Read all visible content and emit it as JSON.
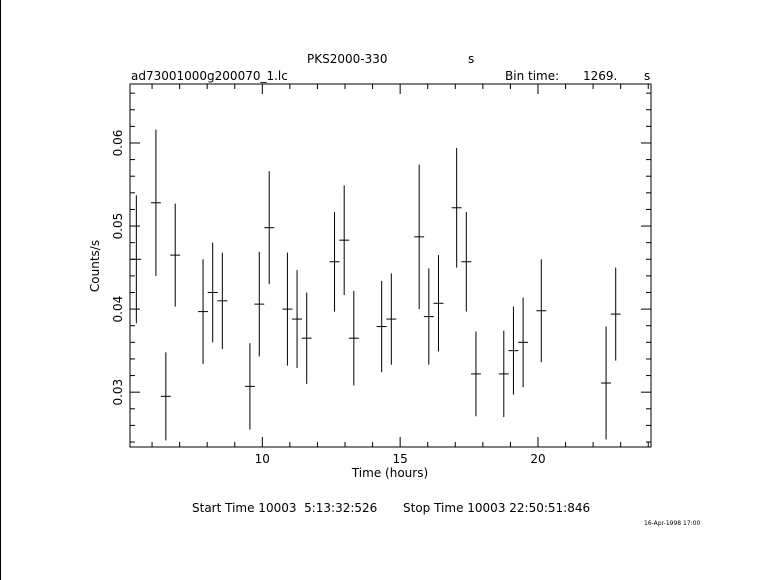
{
  "header": {
    "target": "PKS2000-330",
    "target_unit": "s",
    "filename": "ad73001000g200070_1.lc",
    "bin_time_label": "Bin time:",
    "bin_time_value": "1269.",
    "bin_time_unit": "s"
  },
  "footer": {
    "start_label": "Start Time 10003  5:13:32:526",
    "stop_label": "Stop Time 10003 22:50:51:846",
    "date_stamp": "16-Apr-1998 17:00"
  },
  "chart_data": {
    "type": "scatter",
    "title": "PKS2000-330",
    "xlabel": "Time (hours)",
    "ylabel": "Counts/s",
    "xlim": [
      5.2,
      24.1
    ],
    "ylim": [
      0.0234,
      0.0671
    ],
    "x_ticks": [
      10,
      15,
      20
    ],
    "y_ticks": [
      0.03,
      0.04,
      0.05,
      0.06
    ],
    "x_tick_labels": [
      "10",
      "15",
      "20"
    ],
    "y_tick_labels": [
      "0.03",
      "0.04",
      "0.05",
      "0.06"
    ],
    "grid": false,
    "points": [
      {
        "x": 5.43,
        "y": 0.046,
        "xerr": 0.18,
        "yerr": 0.0077
      },
      {
        "x": 6.14,
        "y": 0.0528,
        "xerr": 0.18,
        "yerr": 0.0088
      },
      {
        "x": 6.5,
        "y": 0.0295,
        "xerr": 0.18,
        "yerr": 0.0053
      },
      {
        "x": 6.84,
        "y": 0.0465,
        "xerr": 0.18,
        "yerr": 0.0062
      },
      {
        "x": 7.85,
        "y": 0.0397,
        "xerr": 0.18,
        "yerr": 0.0063
      },
      {
        "x": 8.2,
        "y": 0.042,
        "xerr": 0.18,
        "yerr": 0.006
      },
      {
        "x": 8.55,
        "y": 0.041,
        "xerr": 0.18,
        "yerr": 0.0058
      },
      {
        "x": 9.55,
        "y": 0.0307,
        "xerr": 0.18,
        "yerr": 0.0052
      },
      {
        "x": 9.89,
        "y": 0.0406,
        "xerr": 0.18,
        "yerr": 0.0063
      },
      {
        "x": 10.25,
        "y": 0.0498,
        "xerr": 0.18,
        "yerr": 0.0068
      },
      {
        "x": 10.91,
        "y": 0.04,
        "xerr": 0.18,
        "yerr": 0.0068
      },
      {
        "x": 11.26,
        "y": 0.0388,
        "xerr": 0.18,
        "yerr": 0.0059
      },
      {
        "x": 11.61,
        "y": 0.0365,
        "xerr": 0.18,
        "yerr": 0.0055
      },
      {
        "x": 12.62,
        "y": 0.0457,
        "xerr": 0.18,
        "yerr": 0.006
      },
      {
        "x": 12.97,
        "y": 0.0483,
        "xerr": 0.18,
        "yerr": 0.0066
      },
      {
        "x": 13.32,
        "y": 0.0365,
        "xerr": 0.18,
        "yerr": 0.0057
      },
      {
        "x": 14.33,
        "y": 0.0379,
        "xerr": 0.18,
        "yerr": 0.0055
      },
      {
        "x": 14.68,
        "y": 0.0388,
        "xerr": 0.18,
        "yerr": 0.0055
      },
      {
        "x": 15.69,
        "y": 0.0487,
        "xerr": 0.18,
        "yerr": 0.0087
      },
      {
        "x": 16.04,
        "y": 0.0391,
        "xerr": 0.18,
        "yerr": 0.0058
      },
      {
        "x": 16.39,
        "y": 0.0407,
        "xerr": 0.18,
        "yerr": 0.0058
      },
      {
        "x": 17.05,
        "y": 0.0522,
        "xerr": 0.18,
        "yerr": 0.0072
      },
      {
        "x": 17.4,
        "y": 0.0457,
        "xerr": 0.18,
        "yerr": 0.006
      },
      {
        "x": 17.75,
        "y": 0.0322,
        "xerr": 0.18,
        "yerr": 0.0051
      },
      {
        "x": 18.76,
        "y": 0.0322,
        "xerr": 0.18,
        "yerr": 0.0052
      },
      {
        "x": 19.11,
        "y": 0.035,
        "xerr": 0.18,
        "yerr": 0.0053
      },
      {
        "x": 19.46,
        "y": 0.036,
        "xerr": 0.18,
        "yerr": 0.0054
      },
      {
        "x": 20.12,
        "y": 0.0398,
        "xerr": 0.18,
        "yerr": 0.0062
      },
      {
        "x": 22.47,
        "y": 0.0311,
        "xerr": 0.18,
        "yerr": 0.0068
      },
      {
        "x": 22.82,
        "y": 0.0394,
        "xerr": 0.18,
        "yerr": 0.0056
      }
    ]
  }
}
